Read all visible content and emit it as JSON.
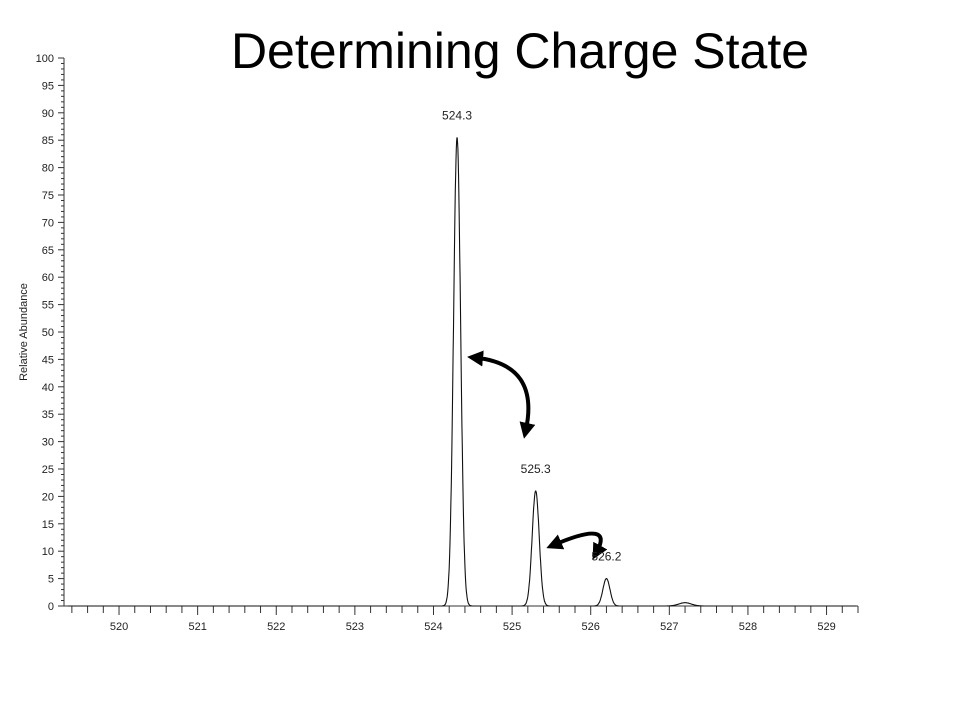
{
  "slide": {
    "title": "Determining Charge State"
  },
  "chart_data": {
    "type": "line",
    "title": "Determining Charge State",
    "xlabel": "",
    "ylabel": "Relative Abundance",
    "xlim": [
      519.3,
      529.4
    ],
    "ylim": [
      0,
      100
    ],
    "x_ticks": [
      520,
      521,
      522,
      523,
      524,
      525,
      526,
      527,
      528,
      529
    ],
    "y_ticks": [
      0,
      5,
      10,
      15,
      20,
      25,
      30,
      35,
      40,
      45,
      50,
      55,
      60,
      65,
      70,
      75,
      80,
      85,
      90,
      95,
      100
    ],
    "grid": false,
    "peaks": [
      {
        "mz": 524.3,
        "abundance": 85.5,
        "label": "524.3"
      },
      {
        "mz": 525.3,
        "abundance": 21.0,
        "label": "525.3"
      },
      {
        "mz": 526.2,
        "abundance": 5.0,
        "label": "526.2"
      },
      {
        "mz": 527.2,
        "abundance": 0.6,
        "label": ""
      }
    ],
    "annotations": [
      {
        "type": "double-arrow",
        "from_peak": "524.3",
        "to_peak": "525.3"
      },
      {
        "type": "double-arrow",
        "from_peak": "525.3",
        "to_peak": "526.2"
      }
    ]
  }
}
